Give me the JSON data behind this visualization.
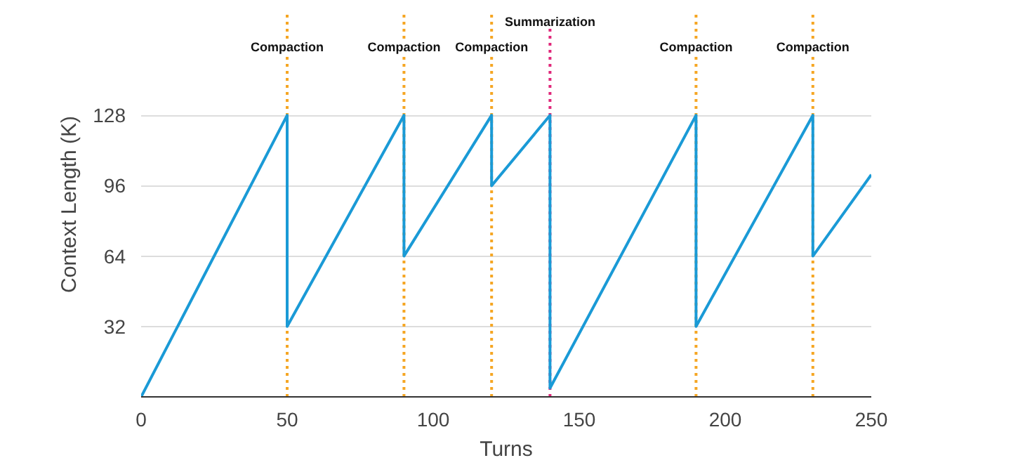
{
  "chart_data": {
    "type": "line",
    "xlabel": "Turns",
    "ylabel": "Context Length (K)",
    "x": [
      0,
      50,
      50,
      90,
      90,
      120,
      120,
      140,
      140,
      190,
      190,
      230,
      230,
      250
    ],
    "series": [
      {
        "color": "#1a9ad6",
        "values": [
          0,
          128,
          32,
          128,
          64,
          128,
          96,
          128,
          4,
          128,
          32,
          128,
          64,
          101
        ]
      }
    ],
    "xlim": [
      0,
      250
    ],
    "ylim": [
      0,
      175
    ],
    "xticks": [
      0,
      50,
      100,
      150,
      200,
      250
    ],
    "yticks": [
      32,
      64,
      96,
      128
    ],
    "grid": "y",
    "marker": "none",
    "line_style": "solid",
    "ref_lines": [
      {
        "axis": "x",
        "value": 50,
        "label": "Compaction",
        "color": "#f5a623",
        "line_style": "dotted"
      },
      {
        "axis": "x",
        "value": 90,
        "label": "Compaction",
        "color": "#f5a623",
        "line_style": "dotted"
      },
      {
        "axis": "x",
        "value": 120,
        "label": "Compaction",
        "color": "#f5a623",
        "line_style": "dotted"
      },
      {
        "axis": "x",
        "value": 140,
        "label": "Summarization",
        "color": "#e0287a",
        "line_style": "dotted"
      },
      {
        "axis": "x",
        "value": 190,
        "label": "Compaction",
        "color": "#f5a623",
        "line_style": "dotted"
      },
      {
        "axis": "x",
        "value": 230,
        "label": "Compaction",
        "color": "#f5a623",
        "line_style": "dotted"
      }
    ]
  }
}
